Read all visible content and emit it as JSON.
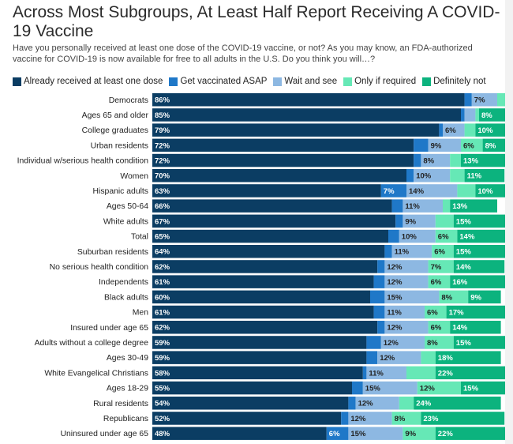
{
  "title": "Across Most Subgroups, At Least Half Report Receiving A COVID-19 Vaccine",
  "subtitle": "Have you personally received at least one dose of the COVID-19 vaccine, or not? As you may know, an FDA-authorized vaccine for COVID-19 is now available for free to all adults in the U.S. Do you think you will…?",
  "colors": {
    "already": "#0b3d63",
    "asap": "#1f78c8",
    "wait": "#8db8e2",
    "required": "#66e8b6",
    "never": "#0cb37e"
  },
  "chart_data": {
    "type": "bar",
    "orientation": "horizontal",
    "stacked": true,
    "xlim": [
      0,
      100
    ],
    "legend_position": "top",
    "categories": [
      "Democrats",
      "Ages 65 and older",
      "College graduates",
      "Urban residents",
      "Individual w/serious health condition",
      "Women",
      "Hispanic adults",
      "Ages 50-64",
      "White adults",
      "Total",
      "Suburban residents",
      "No serious health condition",
      "Independents",
      "Black adults",
      "Men",
      "Insured under age 65",
      "Adults without a college degree",
      "Ages 30-49",
      "White Evangelical Christians",
      "Ages 18-29",
      "Rural residents",
      "Republicans",
      "Uninsured under age 65"
    ],
    "series": [
      {
        "name": "Already received at least one dose",
        "color": "#0b3d63",
        "label_color": "#ffffff",
        "values": [
          86,
          85,
          79,
          72,
          72,
          70,
          63,
          66,
          67,
          65,
          64,
          62,
          61,
          60,
          61,
          62,
          59,
          59,
          58,
          55,
          54,
          52,
          48
        ]
      },
      {
        "name": "Get vaccinated ASAP",
        "color": "#1f78c8",
        "label_color": "#ffffff",
        "values": [
          2,
          1,
          1,
          4,
          2,
          2,
          7,
          3,
          2,
          3,
          2,
          2,
          3,
          4,
          3,
          2,
          4,
          3,
          1,
          3,
          2,
          2,
          6
        ]
      },
      {
        "name": "Wait and see",
        "color": "#8db8e2",
        "label_color": "#222222",
        "values": [
          7,
          3,
          6,
          9,
          8,
          10,
          14,
          11,
          9,
          10,
          11,
          12,
          12,
          15,
          11,
          12,
          12,
          12,
          11,
          15,
          12,
          12,
          15
        ]
      },
      {
        "name": "Only if required",
        "color": "#66e8b6",
        "label_color": "#222222",
        "values": [
          3,
          1,
          3,
          6,
          3,
          4,
          5,
          2,
          5,
          6,
          6,
          7,
          6,
          8,
          6,
          6,
          8,
          4,
          8,
          12,
          4,
          8,
          9
        ]
      },
      {
        "name": "Definitely not",
        "color": "#0cb37e",
        "label_color": "#ffffff",
        "values": [
          2,
          8,
          10,
          8,
          13,
          11,
          10,
          13,
          15,
          14,
          15,
          14,
          16,
          9,
          17,
          14,
          15,
          18,
          22,
          15,
          24,
          23,
          22
        ]
      }
    ],
    "labels": [
      [
        "86%",
        "",
        "7%",
        "",
        ""
      ],
      [
        "85%",
        "",
        "",
        "",
        "8%"
      ],
      [
        "79%",
        "",
        "6%",
        "",
        "10%"
      ],
      [
        "72%",
        "",
        "9%",
        "6%",
        "8%"
      ],
      [
        "72%",
        "",
        "8%",
        "",
        "13%"
      ],
      [
        "70%",
        "",
        "10%",
        "",
        "11%"
      ],
      [
        "63%",
        "7%",
        "14%",
        "",
        "10%"
      ],
      [
        "66%",
        "",
        "11%",
        "",
        "13%"
      ],
      [
        "67%",
        "",
        "9%",
        "",
        "15%"
      ],
      [
        "65%",
        "",
        "10%",
        "6%",
        "14%"
      ],
      [
        "64%",
        "",
        "11%",
        "6%",
        "15%"
      ],
      [
        "62%",
        "",
        "12%",
        "7%",
        "14%"
      ],
      [
        "61%",
        "",
        "12%",
        "6%",
        "16%"
      ],
      [
        "60%",
        "",
        "15%",
        "8%",
        "9%"
      ],
      [
        "61%",
        "",
        "11%",
        "6%",
        "17%"
      ],
      [
        "62%",
        "",
        "12%",
        "6%",
        "14%"
      ],
      [
        "59%",
        "",
        "12%",
        "8%",
        "15%"
      ],
      [
        "59%",
        "",
        "12%",
        "",
        "18%"
      ],
      [
        "58%",
        "",
        "11%",
        "",
        "22%"
      ],
      [
        "55%",
        "",
        "15%",
        "12%",
        "15%"
      ],
      [
        "54%",
        "",
        "12%",
        "",
        "24%"
      ],
      [
        "52%",
        "",
        "12%",
        "8%",
        "23%"
      ],
      [
        "48%",
        "6%",
        "15%",
        "9%",
        "22%"
      ]
    ]
  }
}
